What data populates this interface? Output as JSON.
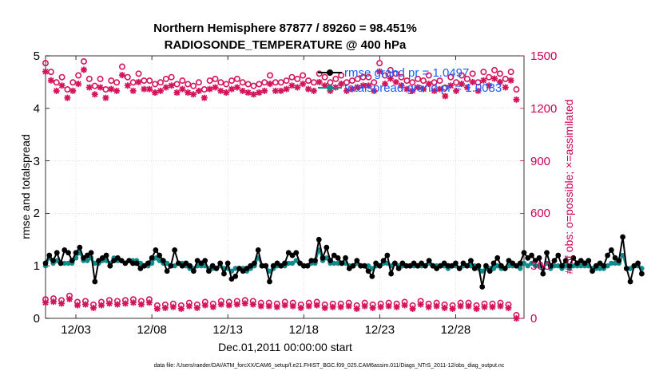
{
  "chart_data": {
    "type": "line",
    "title": "Northern Hemisphere 87877 / 89260 = 98.451%",
    "subtitle": "RADIOSONDE_TEMPERATURE @ 400 hPa",
    "xlabel": "Dec.01,2011 00:00:00 start",
    "ylabel": "rmse and totalspread",
    "ylabel_right": "# of obs: o=possible; ×=assimilated",
    "footer": "data file: /Users/raeder/DAI/ATM_forcXX/CAM6_setup/f.e21.FHIST_BGC.f09_025.CAM6assim.011/Diags_NTrS_2011-12/obs_diag_output.nc",
    "xlim": [
      1,
      32.5
    ],
    "ylim": [
      0,
      5
    ],
    "ylim_right": [
      0,
      1500
    ],
    "xticks": [
      3,
      8,
      13,
      18,
      23,
      28
    ],
    "xtick_labels": [
      "12/03",
      "12/08",
      "12/13",
      "12/18",
      "12/23",
      "12/28"
    ],
    "yticks": [
      "0",
      "1",
      "2",
      "3",
      "4",
      "5"
    ],
    "yticks_right": [
      "0",
      "300",
      "600",
      "900",
      "1200",
      "1500"
    ],
    "colors": {
      "rmse": "#000000",
      "spread": "#0e8c8c",
      "obs": "#d4145a",
      "legend_text": "#1a5cff",
      "right_axis": "#cc0055"
    },
    "legend": [
      {
        "label": "rmse grand pr = 1.0497",
        "series": "rmse"
      },
      {
        "label": "totalspread grand pr = 1.0083",
        "series": "totalspread"
      }
    ],
    "x_start": 1,
    "x_step": 0.25,
    "series": [
      {
        "name": "rmse",
        "values": [
          1.05,
          1.2,
          1.1,
          1.25,
          1.05,
          1.3,
          1.25,
          1.1,
          1.25,
          1.35,
          1.15,
          1.2,
          1.25,
          0.7,
          1.1,
          1.15,
          1.2,
          1.0,
          1.1,
          1.15,
          1.1,
          1.05,
          1.1,
          1.05,
          1.05,
          0.95,
          1.0,
          1.05,
          1.15,
          1.3,
          1.2,
          1.1,
          0.9,
          1.0,
          1.3,
          1.05,
          1.0,
          1.05,
          1.0,
          0.9,
          1.1,
          1.05,
          1.1,
          0.9,
          1.0,
          0.95,
          1.05,
          0.85,
          1.05,
          0.75,
          0.8,
          0.95,
          0.9,
          0.95,
          1.0,
          1.05,
          1.3,
          1.0,
          1.0,
          0.7,
          1.0,
          1.05,
          1.0,
          1.05,
          1.25,
          1.2,
          1.25,
          1.05,
          1.0,
          1.0,
          1.1,
          1.1,
          1.5,
          1.15,
          1.35,
          1.1,
          1.2,
          1.15,
          1.05,
          1.15,
          0.95,
          1.0,
          1.1,
          1.0,
          1.0,
          0.9,
          0.8,
          1.05,
          1.0,
          1.1,
          1.2,
          0.85,
          1.05,
          0.95,
          1.05,
          1.0,
          1.0,
          1.05,
          1.0,
          1.05,
          1.0,
          1.1,
          1.0,
          0.95,
          1.0,
          1.05,
          1.0,
          1.0,
          1.05,
          0.95,
          1.05,
          1.0,
          1.1,
          0.95,
          1.0,
          0.6,
          1.0,
          0.9,
          1.05,
          1.15,
          1.0,
          0.95,
          1.1,
          1.05,
          1.0,
          1.05,
          1.25,
          1.15,
          1.2,
          1.1,
          1.15,
          0.85,
          1.25,
          1.0,
          1.1,
          1.2,
          1.0,
          1.1,
          1.0,
          1.15,
          1.05,
          1.1,
          1.05,
          1.1,
          0.9,
          1.0,
          1.05,
          1.0,
          1.2,
          1.3,
          1.15,
          1.1,
          1.55,
          0.95,
          0.7,
          1.0,
          1.05,
          0.85
        ]
      },
      {
        "name": "totalspread",
        "values": [
          1.0,
          1.15,
          1.05,
          1.1,
          1.05,
          1.05,
          1.05,
          1.05,
          1.15,
          1.25,
          1.1,
          1.1,
          1.15,
          1.05,
          1.05,
          1.1,
          1.1,
          1.05,
          1.15,
          1.1,
          1.1,
          1.05,
          1.1,
          1.1,
          1.1,
          1.05,
          1.0,
          1.0,
          1.05,
          1.15,
          1.1,
          1.05,
          1.05,
          1.0,
          1.0,
          1.05,
          1.05,
          1.0,
          0.95,
          0.95,
          1.0,
          1.0,
          1.0,
          0.95,
          0.95,
          0.95,
          1.0,
          0.95,
          0.95,
          0.9,
          0.95,
          0.95,
          0.95,
          0.9,
          0.95,
          1.0,
          1.15,
          1.0,
          1.0,
          0.9,
          0.95,
          1.0,
          1.0,
          1.0,
          1.05,
          1.05,
          1.1,
          1.05,
          1.0,
          1.0,
          1.05,
          1.05,
          1.3,
          1.1,
          1.15,
          1.05,
          1.05,
          1.05,
          1.05,
          1.05,
          1.0,
          1.0,
          1.05,
          1.0,
          1.0,
          1.0,
          0.95,
          1.0,
          1.0,
          1.05,
          1.05,
          1.0,
          1.05,
          1.0,
          1.0,
          1.0,
          1.0,
          1.0,
          1.0,
          1.0,
          1.0,
          1.05,
          1.0,
          1.0,
          1.0,
          1.0,
          0.95,
          1.0,
          1.0,
          0.95,
          1.0,
          1.0,
          1.0,
          1.0,
          0.95,
          0.9,
          0.95,
          0.95,
          0.95,
          1.0,
          0.95,
          0.95,
          1.0,
          1.0,
          1.0,
          0.95,
          1.05,
          1.0,
          1.05,
          1.0,
          1.0,
          0.95,
          1.05,
          0.95,
          1.0,
          1.0,
          0.95,
          1.0,
          0.95,
          1.0,
          1.0,
          1.0,
          1.0,
          1.0,
          0.95,
          0.95,
          0.95,
          0.95,
          1.0,
          1.05,
          1.05,
          1.05,
          1.2,
          0.95,
          0.95,
          1.0,
          1.0,
          0.95
        ]
      },
      {
        "name": "obs_possible",
        "values": [
          1440,
          1390,
          1330,
          1360,
          1290,
          1330,
          1370,
          1450,
          1350,
          1310,
          1350,
          1290,
          1340,
          1330,
          1420,
          1360,
          1330,
          1380,
          1340,
          1340,
          1320,
          1330,
          1350,
          1360,
          1320,
          1340,
          1320,
          1310,
          1330,
          1290,
          1340,
          1350,
          1330,
          1320,
          1340,
          1350,
          1330,
          1320,
          1310,
          1320,
          1330,
          1370,
          1330,
          1330,
          1340,
          1360,
          1350,
          1370,
          1340,
          1330,
          1380,
          1360,
          1330,
          1350,
          1370,
          1330,
          1340,
          1350,
          1360,
          1360,
          1330,
          1440,
          1370,
          1400,
          1380,
          1360,
          1340,
          1330,
          1350,
          1340,
          1370,
          1330,
          1340,
          1300,
          1360,
          1330,
          1370,
          1350,
          1380,
          1330,
          1390,
          1360,
          1400,
          1380,
          1350,
          1390,
          1290
        ]
      },
      {
        "name": "obs_assimilated",
        "values": [
          1410,
          1360,
          1300,
          1330,
          1260,
          1300,
          1340,
          1420,
          1320,
          1280,
          1320,
          1260,
          1310,
          1300,
          1390,
          1330,
          1300,
          1350,
          1310,
          1310,
          1290,
          1300,
          1320,
          1330,
          1290,
          1310,
          1290,
          1280,
          1300,
          1260,
          1310,
          1320,
          1300,
          1290,
          1310,
          1320,
          1300,
          1290,
          1280,
          1290,
          1300,
          1340,
          1300,
          1300,
          1310,
          1330,
          1320,
          1340,
          1310,
          1300,
          1350,
          1330,
          1300,
          1320,
          1340,
          1300,
          1310,
          1320,
          1330,
          1330,
          1300,
          1410,
          1340,
          1370,
          1350,
          1330,
          1310,
          1300,
          1320,
          1310,
          1340,
          1300,
          1310,
          1270,
          1330,
          1300,
          1340,
          1320,
          1350,
          1300,
          1360,
          1330,
          1370,
          1350,
          1320,
          1360,
          1250
        ]
      },
      {
        "name": "obs_possible_low",
        "values": [
          90,
          95,
          85,
          110,
          75,
          80,
          60,
          75,
          85,
          80,
          85,
          90,
          80,
          90,
          55,
          60,
          65,
          55,
          70,
          60,
          75,
          65,
          80,
          75,
          80,
          85,
          80,
          70,
          70,
          65,
          75,
          70,
          60,
          70,
          75,
          60,
          65,
          65,
          70,
          55,
          70,
          60,
          65,
          70,
          65,
          75,
          55,
          80,
          65,
          70,
          60,
          55,
          70,
          70,
          55,
          65,
          65,
          70,
          60,
          0
        ]
      },
      {
        "name": "obs_assimilated_low",
        "values": [
          90,
          95,
          85,
          110,
          75,
          80,
          60,
          75,
          85,
          80,
          85,
          90,
          80,
          90,
          55,
          60,
          65,
          55,
          70,
          60,
          75,
          65,
          80,
          75,
          80,
          85,
          80,
          70,
          70,
          65,
          75,
          70,
          60,
          70,
          75,
          60,
          65,
          65,
          70,
          55,
          70,
          60,
          65,
          70,
          65,
          75,
          55,
          80,
          65,
          70,
          60,
          55,
          70,
          70,
          55,
          65,
          65,
          70,
          60,
          0
        ]
      }
    ]
  }
}
